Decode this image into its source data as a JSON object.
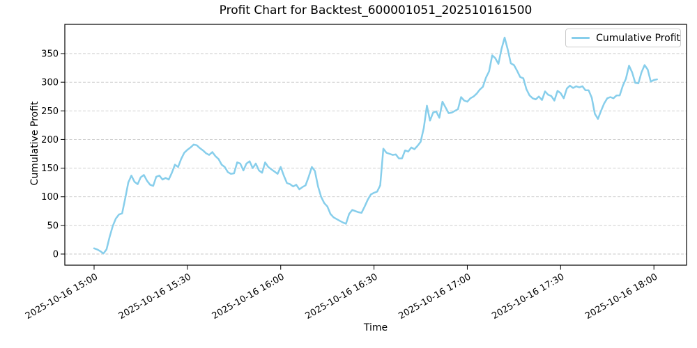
{
  "chart_data": {
    "type": "line",
    "title": "Profit Chart for Backtest_600001051_202510161500",
    "xlabel": "Time",
    "ylabel": "Cumulative Profit",
    "legend": [
      "Cumulative Profit"
    ],
    "legend_position": "upper right",
    "grid": "horizontal-dashed",
    "line_color": "#87CEEB",
    "grid_color": "#c8c8c8",
    "background": "#FFFFFF",
    "x_start": "2025-10-16 15:00",
    "x_interval_minutes": 1,
    "x_tick_labels": [
      "2025-10-16 15:00",
      "2025-10-16 15:30",
      "2025-10-16 16:00",
      "2025-10-16 16:30",
      "2025-10-16 17:00",
      "2025-10-16 17:30",
      "2025-10-16 18:00"
    ],
    "x_tick_minutes": [
      0,
      30,
      60,
      90,
      120,
      150,
      180
    ],
    "y_ticks": [
      0,
      50,
      100,
      150,
      200,
      250,
      300,
      350
    ],
    "ylim": [
      -20,
      400
    ],
    "series": [
      {
        "name": "Cumulative Profit",
        "values": [
          10,
          8,
          5,
          1,
          8,
          30,
          49,
          62,
          69,
          71,
          97,
          125,
          137,
          126,
          122,
          134,
          138,
          128,
          121,
          119,
          135,
          137,
          130,
          133,
          130,
          142,
          156,
          152,
          166,
          177,
          182,
          186,
          191,
          190,
          185,
          181,
          176,
          173,
          178,
          171,
          166,
          156,
          152,
          143,
          140,
          141,
          160,
          158,
          146,
          158,
          162,
          150,
          158,
          146,
          142,
          160,
          152,
          148,
          144,
          140,
          152,
          137,
          124,
          122,
          118,
          121,
          113,
          117,
          120,
          135,
          152,
          145,
          118,
          100,
          89,
          83,
          70,
          64,
          61,
          58,
          55,
          53,
          70,
          77,
          75,
          73,
          72,
          83,
          95,
          104,
          107,
          109,
          120,
          184,
          177,
          175,
          173,
          174,
          167,
          167,
          181,
          179,
          186,
          183,
          189,
          196,
          220,
          259,
          233,
          247,
          249,
          238,
          266,
          256,
          246,
          247,
          250,
          253,
          274,
          268,
          266,
          272,
          275,
          280,
          287,
          292,
          308,
          319,
          347,
          342,
          332,
          358,
          378,
          357,
          333,
          330,
          320,
          309,
          307,
          288,
          277,
          272,
          270,
          275,
          269,
          284,
          278,
          276,
          268,
          285,
          281,
          272,
          289,
          294,
          290,
          293,
          291,
          293,
          286,
          286,
          273,
          245,
          236,
          250,
          263,
          272,
          274,
          272,
          277,
          277,
          294,
          306,
          329,
          317,
          299,
          298,
          317,
          330,
          322,
          301,
          304,
          305
        ]
      }
    ]
  }
}
